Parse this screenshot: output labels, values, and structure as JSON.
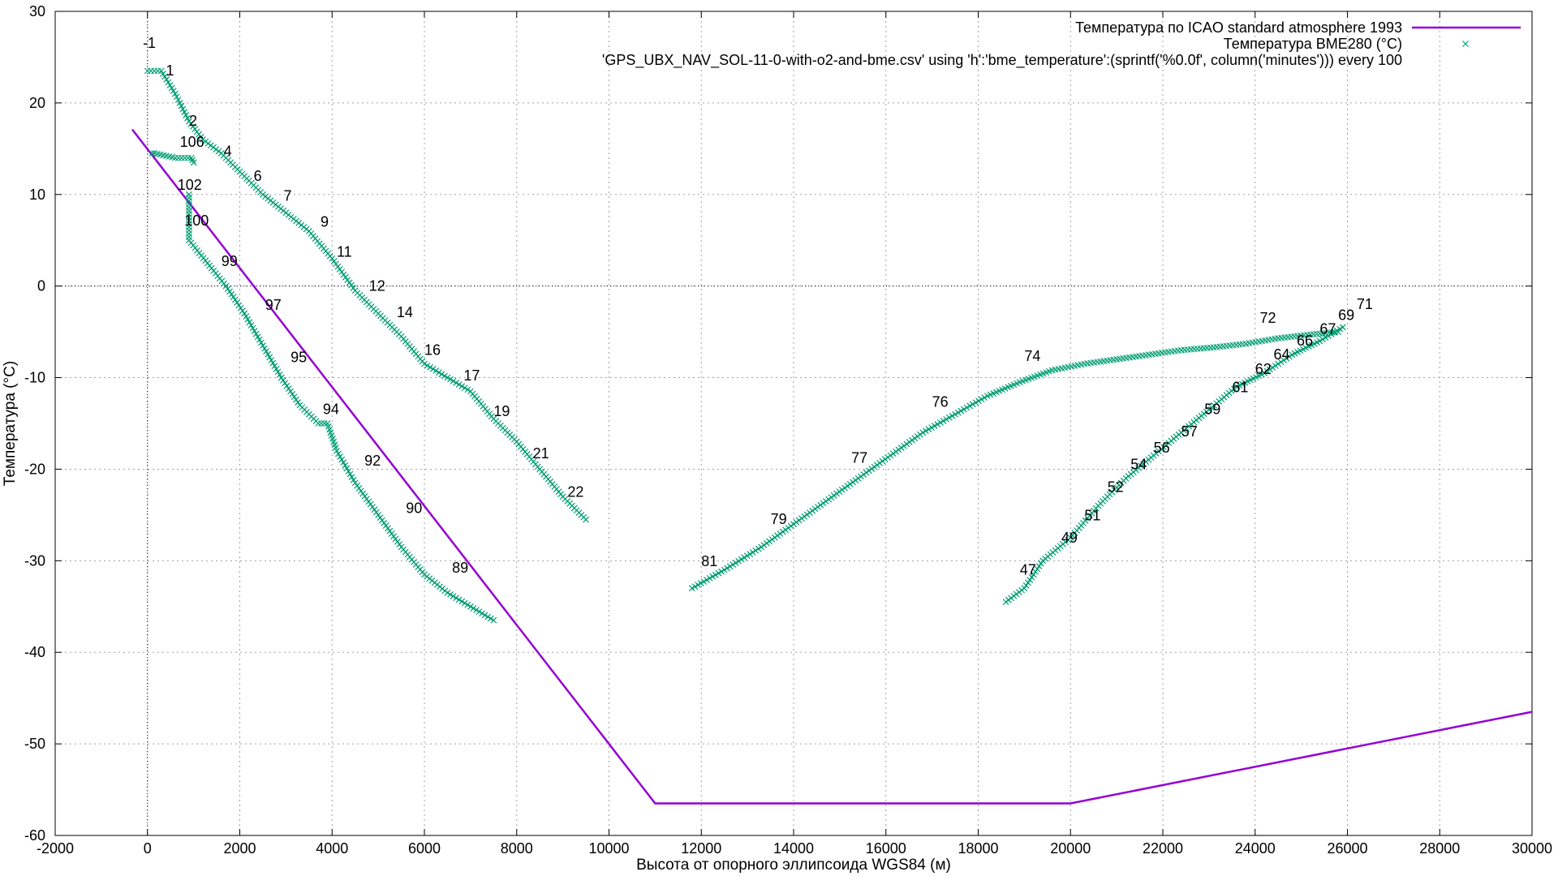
{
  "chart_data": {
    "type": "line",
    "xlabel": "Высота от опорного эллипсоида WGS84 (м)",
    "ylabel": "Температура (°C)",
    "xlim": [
      -2000,
      30000
    ],
    "ylim": [
      -60,
      30
    ],
    "x_ticks": [
      -2000,
      0,
      2000,
      4000,
      6000,
      8000,
      10000,
      12000,
      14000,
      16000,
      18000,
      20000,
      22000,
      24000,
      26000,
      28000,
      30000
    ],
    "y_ticks": [
      -60,
      -50,
      -40,
      -30,
      -20,
      -10,
      0,
      10,
      20,
      30
    ],
    "grid": true,
    "zero_line": true,
    "legend_position": "top-right",
    "colors": {
      "isa": "#9400d3",
      "bme": "#009e73"
    },
    "legend": [
      "Температура по ICAO standard atmosphere 1993",
      "Температура BME280 (°C)",
      "'GPS_UBX_NAV_SOL-11-0-with-o2-and-bme.csv' using 'h':'bme_temperature':(sprintf('%0.0f', column('minutes'))) every 100"
    ],
    "series": [
      {
        "name": "Температура по ICAO standard atmosphere 1993",
        "style": "line",
        "x": [
          -330,
          11000,
          20000,
          30000
        ],
        "y": [
          17.1,
          -56.5,
          -56.5,
          -46.5
        ]
      },
      {
        "name": "Температура BME280 (°C)",
        "style": "points",
        "segments": [
          {
            "x": [
              0,
              300,
              600,
              900,
              1200,
              1600,
              2000,
              2500,
              3000,
              3500,
              4000,
              4500,
              5000,
              5500,
              6000,
              6500,
              7000,
              7500,
              8000,
              8500,
              9000,
              9500
            ],
            "y": [
              23.5,
              23.5,
              21,
              18,
              16,
              14.5,
              12.5,
              10,
              8,
              6,
              3,
              -0.5,
              -3,
              -5.5,
              -8.5,
              -10,
              -11.5,
              -14.5,
              -17,
              -20,
              -23,
              -25.5
            ]
          },
          {
            "x": [
              900,
              900,
              1300,
              1700,
              2100,
              2500,
              2900,
              3300,
              3700,
              3900,
              4100,
              4500,
              5000,
              5500,
              6000,
              6500,
              7000,
              7500
            ],
            "y": [
              10,
              5,
              2.5,
              0,
              -3,
              -6.5,
              -10,
              -13,
              -15,
              -15,
              -18,
              -21.5,
              -25,
              -28.5,
              -31.5,
              -33.5,
              -35,
              -36.5
            ]
          },
          {
            "x": [
              18600,
              19000,
              19400,
              20000,
              20600,
              21200,
              21800,
              22400,
              23000,
              23600,
              24200,
              24800,
              25400,
              25900
            ],
            "y": [
              -34.5,
              -33,
              -30,
              -27.5,
              -24,
              -21,
              -18.5,
              -16,
              -13.5,
              -11,
              -9.5,
              -7.5,
              -6,
              -4.5
            ]
          },
          {
            "x": [
              11800,
              12500,
              13300,
              14000,
              14700,
              15400,
              16100,
              16800,
              17500,
              18200,
              18900,
              19600,
              20300,
              21000,
              21700,
              22400,
              23100,
              23800,
              24500,
              25200,
              25800
            ],
            "y": [
              -33,
              -31,
              -28.5,
              -26,
              -23.5,
              -21,
              -18.5,
              -16,
              -14,
              -12,
              -10.5,
              -9.2,
              -8.5,
              -8,
              -7.5,
              -7,
              -6.7,
              -6.3,
              -5.7,
              -5.3,
              -5
            ]
          },
          {
            "x": [
              100,
              150,
              600,
              950,
              1000
            ],
            "y": [
              14.5,
              14.5,
              14,
              14,
              13.5
            ]
          }
        ]
      }
    ],
    "point_labels": [
      {
        "x": -100,
        "y": 26,
        "text": "-1"
      },
      {
        "x": 400,
        "y": 23,
        "text": "1"
      },
      {
        "x": 900,
        "y": 17.5,
        "text": "2"
      },
      {
        "x": 700,
        "y": 15.2,
        "text": "106"
      },
      {
        "x": 1650,
        "y": 14.2,
        "text": "4"
      },
      {
        "x": 2300,
        "y": 11.5,
        "text": "6"
      },
      {
        "x": 2950,
        "y": 9.3,
        "text": "7"
      },
      {
        "x": 3750,
        "y": 6.5,
        "text": "9"
      },
      {
        "x": 4100,
        "y": 3.2,
        "text": "11"
      },
      {
        "x": 4800,
        "y": -0.5,
        "text": "12"
      },
      {
        "x": 5400,
        "y": -3.4,
        "text": "14"
      },
      {
        "x": 6000,
        "y": -7.5,
        "text": "16"
      },
      {
        "x": 6850,
        "y": -10.3,
        "text": "17"
      },
      {
        "x": 7500,
        "y": -14.2,
        "text": "19"
      },
      {
        "x": 8350,
        "y": -18.8,
        "text": "21"
      },
      {
        "x": 9100,
        "y": -23,
        "text": "22"
      },
      {
        "x": 650,
        "y": 10.5,
        "text": "102"
      },
      {
        "x": 800,
        "y": 6.6,
        "text": "100"
      },
      {
        "x": 1600,
        "y": 2.2,
        "text": "99"
      },
      {
        "x": 2550,
        "y": -2.6,
        "text": "97"
      },
      {
        "x": 3100,
        "y": -8.3,
        "text": "95"
      },
      {
        "x": 3800,
        "y": -14,
        "text": "94"
      },
      {
        "x": 4700,
        "y": -19.6,
        "text": "92"
      },
      {
        "x": 5600,
        "y": -24.8,
        "text": "90"
      },
      {
        "x": 6600,
        "y": -31.3,
        "text": "89"
      },
      {
        "x": 12000,
        "y": -30.6,
        "text": "81"
      },
      {
        "x": 13500,
        "y": -26,
        "text": "79"
      },
      {
        "x": 15250,
        "y": -19.3,
        "text": "77"
      },
      {
        "x": 17000,
        "y": -13.2,
        "text": "76"
      },
      {
        "x": 19000,
        "y": -8.2,
        "text": "74"
      },
      {
        "x": 18900,
        "y": -31.5,
        "text": "47"
      },
      {
        "x": 19800,
        "y": -28,
        "text": "49"
      },
      {
        "x": 20300,
        "y": -25.6,
        "text": "51"
      },
      {
        "x": 20800,
        "y": -22.5,
        "text": "52"
      },
      {
        "x": 21300,
        "y": -20,
        "text": "54"
      },
      {
        "x": 21800,
        "y": -18.2,
        "text": "56"
      },
      {
        "x": 22400,
        "y": -16.4,
        "text": "57"
      },
      {
        "x": 22900,
        "y": -14,
        "text": "59"
      },
      {
        "x": 23500,
        "y": -11.6,
        "text": "61"
      },
      {
        "x": 24000,
        "y": -9.6,
        "text": "62"
      },
      {
        "x": 24400,
        "y": -8,
        "text": "64"
      },
      {
        "x": 24900,
        "y": -6.5,
        "text": "66"
      },
      {
        "x": 25400,
        "y": -5.2,
        "text": "67"
      },
      {
        "x": 24100,
        "y": -4,
        "text": "72"
      },
      {
        "x": 25800,
        "y": -3.7,
        "text": "69"
      },
      {
        "x": 26200,
        "y": -2.5,
        "text": "71"
      }
    ]
  }
}
